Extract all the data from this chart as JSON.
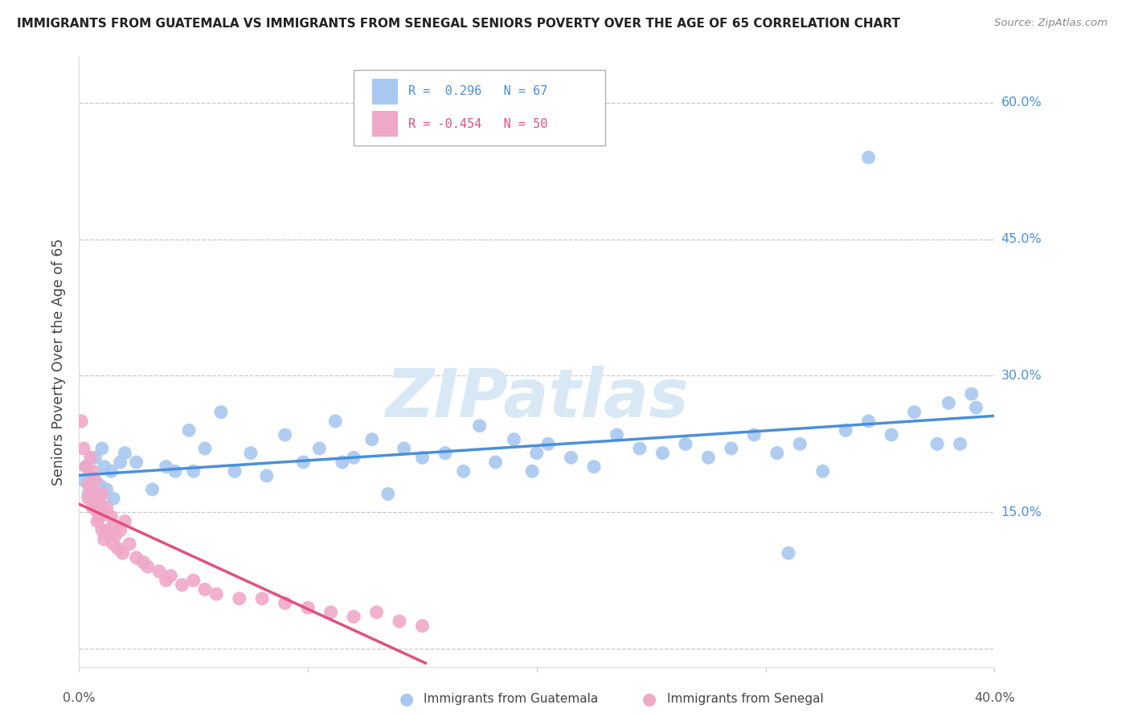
{
  "title": "IMMIGRANTS FROM GUATEMALA VS IMMIGRANTS FROM SENEGAL SENIORS POVERTY OVER THE AGE OF 65 CORRELATION CHART",
  "source": "Source: ZipAtlas.com",
  "ylabel": "Seniors Poverty Over the Age of 65",
  "xlim": [
    0.0,
    0.4
  ],
  "ylim": [
    -0.02,
    0.65
  ],
  "yticks": [
    0.0,
    0.15,
    0.3,
    0.45,
    0.6
  ],
  "ytick_labels": [
    "",
    "15.0%",
    "30.0%",
    "45.0%",
    "60.0%"
  ],
  "xticks": [
    0.0,
    0.1,
    0.2,
    0.3,
    0.4
  ],
  "color_blue": "#a8c8f0",
  "color_pink": "#f0a8c8",
  "line_blue": "#4a90d9",
  "line_pink": "#e05080",
  "background": "#ffffff",
  "grid_color": "#c8c8c8",
  "watermark_color": "#d8e8f5",
  "title_color": "#222222",
  "source_color": "#888888",
  "ylabel_color": "#444444",
  "tick_label_color": "#4a90d9",
  "bottom_legend_color": "#444444"
}
